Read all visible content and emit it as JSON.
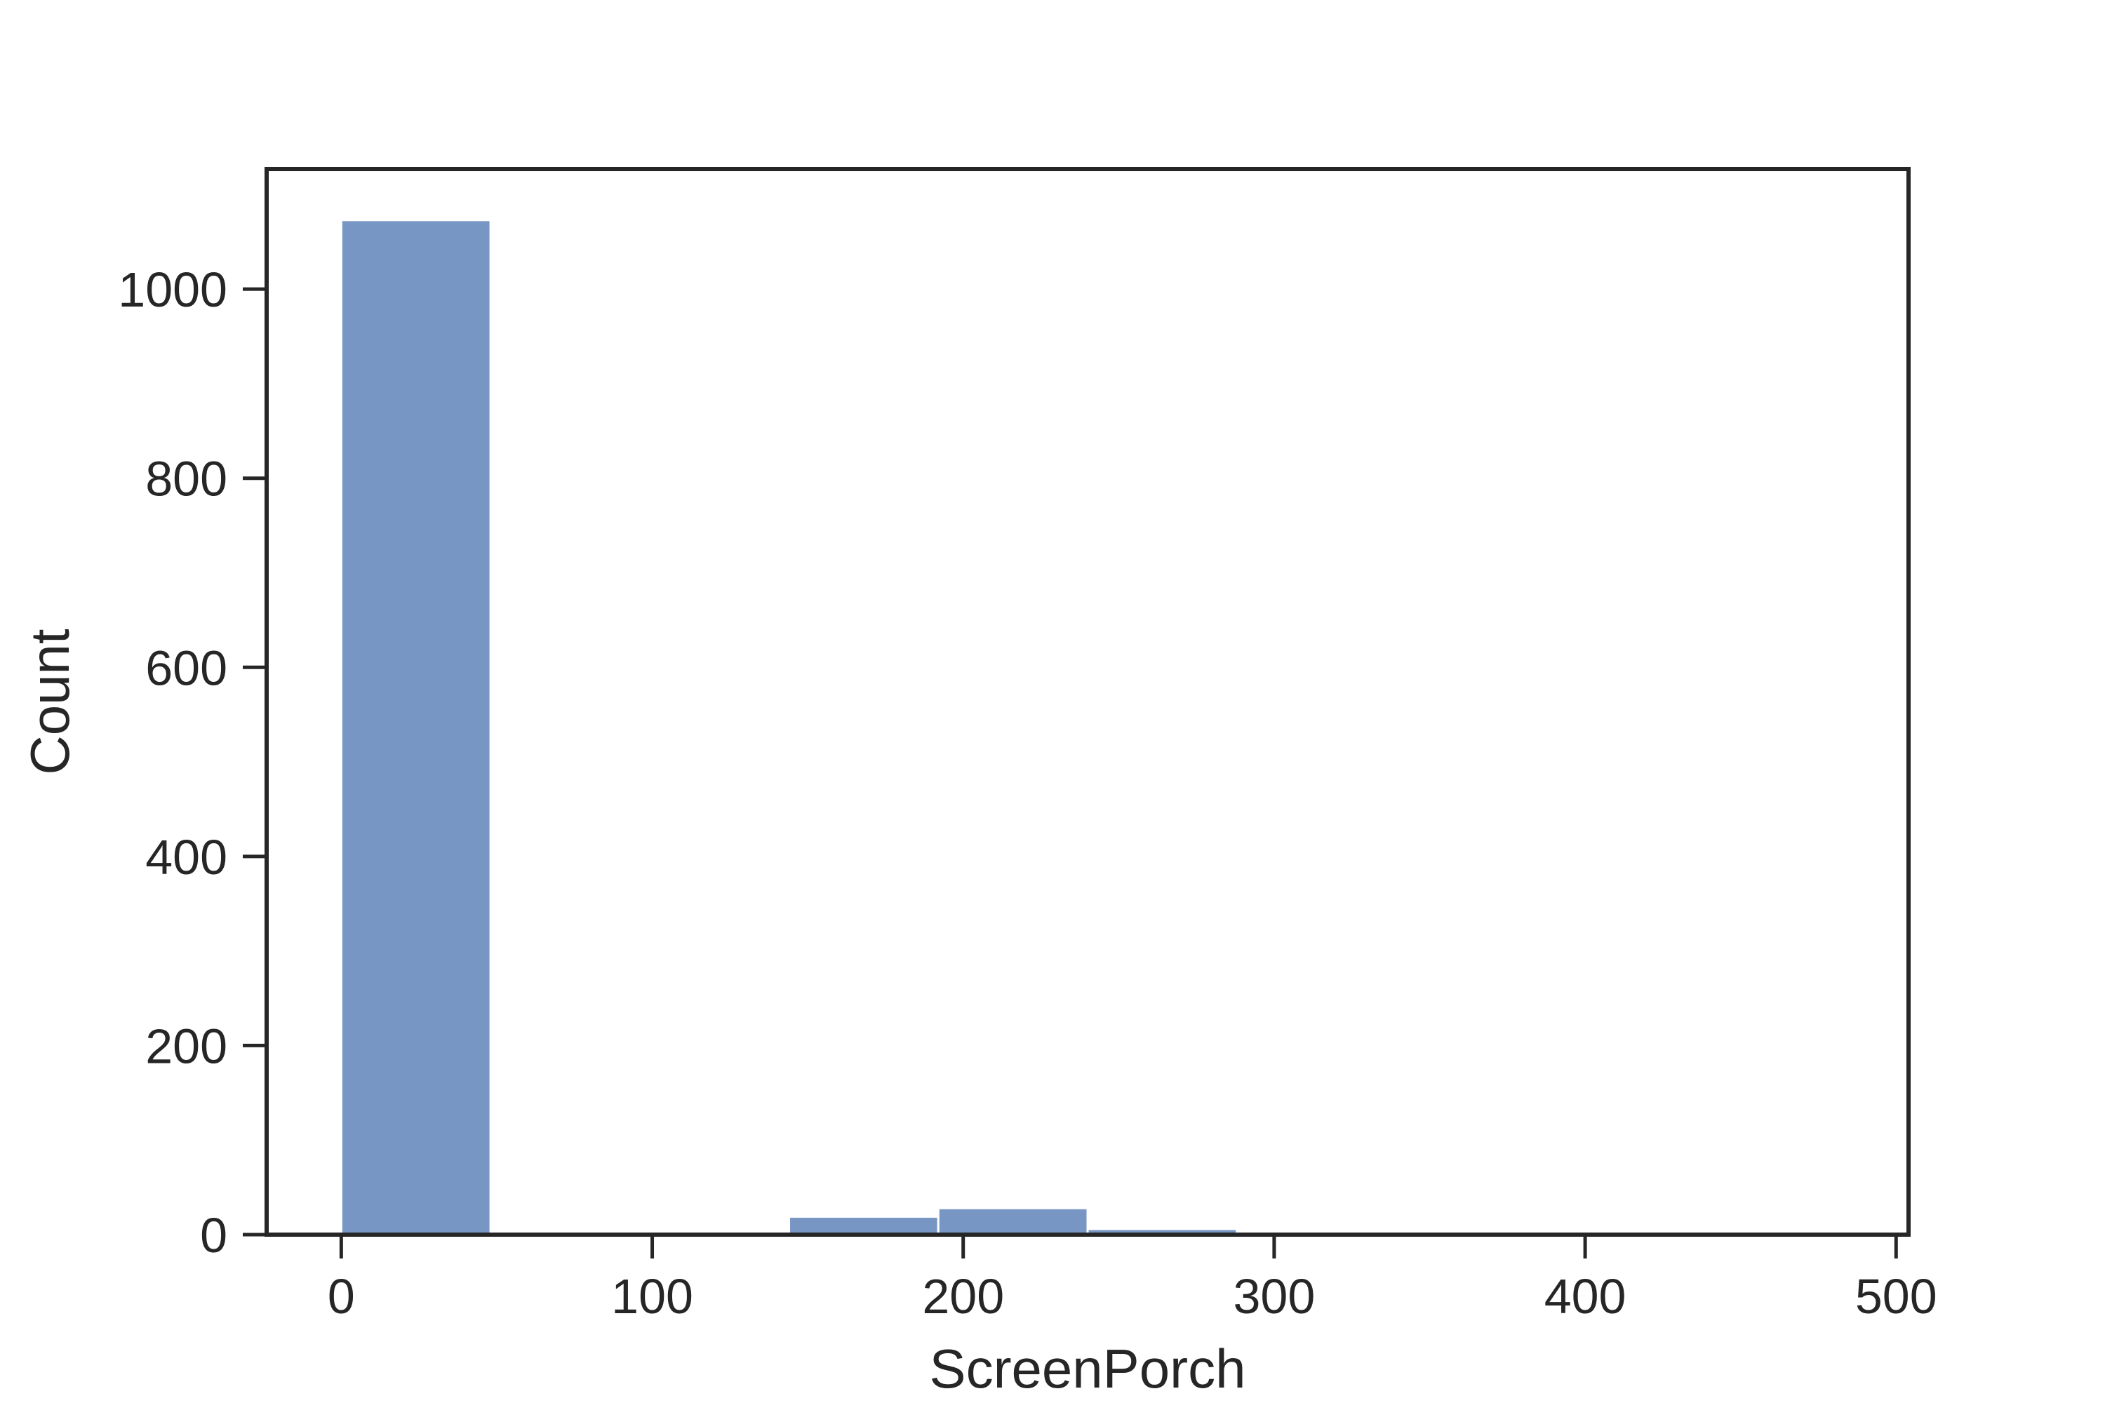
{
  "chart_data": {
    "type": "bar",
    "histogram": true,
    "xlabel": "ScreenPorch",
    "ylabel": "Count",
    "bins": [
      {
        "x0": 0,
        "x1": 48,
        "count": 1073
      },
      {
        "x0": 48,
        "x1": 96,
        "count": 0
      },
      {
        "x0": 96,
        "x1": 144,
        "count": 0
      },
      {
        "x0": 144,
        "x1": 192,
        "count": 19
      },
      {
        "x0": 192,
        "x1": 240,
        "count": 28
      },
      {
        "x0": 240,
        "x1": 288,
        "count": 6
      },
      {
        "x0": 288,
        "x1": 336,
        "count": 2
      },
      {
        "x0": 336,
        "x1": 384,
        "count": 0
      },
      {
        "x0": 384,
        "x1": 432,
        "count": 0
      },
      {
        "x0": 432,
        "x1": 480,
        "count": 1
      }
    ],
    "xlim": [
      -24,
      504
    ],
    "ylim": [
      0,
      1127
    ],
    "xticks": [
      0,
      100,
      200,
      300,
      400,
      500
    ],
    "yticks": [
      0,
      200,
      400,
      600,
      800,
      1000
    ],
    "xtick_labels": [
      "0",
      "100",
      "200",
      "300",
      "400",
      "500"
    ],
    "ytick_labels": [
      "0",
      "200",
      "400",
      "600",
      "800",
      "1000"
    ],
    "bar_color": "#7896c4",
    "edge_color": "#ffffff",
    "axis_color": "#262626",
    "grid": false,
    "legend": "none"
  }
}
